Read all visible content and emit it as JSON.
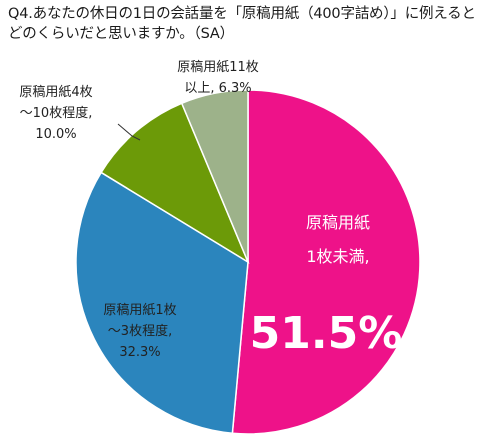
{
  "question": {
    "text": "Q4.あなたの休日の1日の会話量を「原稿用紙（400字詰め）」に例えるとどのくらいだと思いますか。（SA）"
  },
  "chart_data": {
    "type": "pie",
    "title": "Q4.あなたの休日の1日の会話量を「原稿用紙（400字詰め）」に例えるとどのくらいだと思いますか。（SA）",
    "slices": [
      {
        "label_lines": [
          "原稿用紙",
          "1枚未満,"
        ],
        "value": 51.5,
        "value_text": "51.5%",
        "color": "#ee1289"
      },
      {
        "label_lines": [
          "原稿用紙1枚",
          "～3枚程度,"
        ],
        "value": 32.3,
        "value_text": "32.3%",
        "color": "#2b85bd"
      },
      {
        "label_lines": [
          "原稿用紙4枚",
          "～10枚程度,"
        ],
        "value": 10.0,
        "value_text": "10.0%",
        "color": "#6c9a08"
      },
      {
        "label_lines": [
          "原稿用紙11枚",
          "以上,"
        ],
        "value": 6.3,
        "value_text": "6.3%",
        "color": "#9db28a"
      }
    ],
    "start_angle_deg": 0,
    "direction": "clockwise"
  }
}
